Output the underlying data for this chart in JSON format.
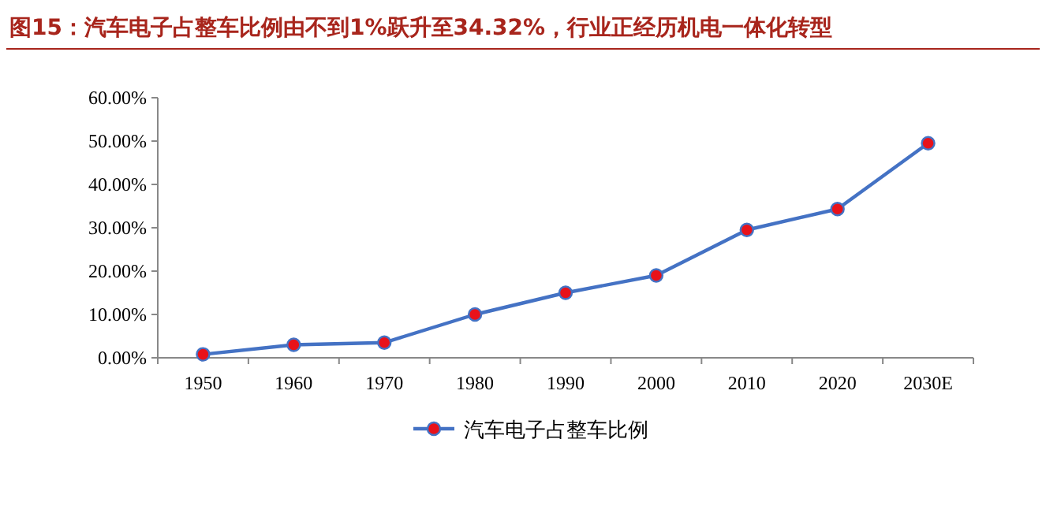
{
  "chart_data": {
    "type": "line",
    "title": "图15：汽车电子占整车比例由不到1%跃升至34.32%，行业正经历机电一体化转型",
    "categories": [
      "1950",
      "1960",
      "1970",
      "1980",
      "1990",
      "2000",
      "2010",
      "2020",
      "2030E"
    ],
    "series": [
      {
        "name": "汽车电子占整车比例",
        "color": "#4472c4",
        "values": [
          0.8,
          3.0,
          3.5,
          10.0,
          15.0,
          19.0,
          29.5,
          34.32,
          49.5
        ]
      }
    ],
    "ylim": [
      0,
      60
    ],
    "yticks": [
      {
        "value": 0,
        "label": "0.00%"
      },
      {
        "value": 10,
        "label": "10.00%"
      },
      {
        "value": 20,
        "label": "20.00%"
      },
      {
        "value": 30,
        "label": "30.00%"
      },
      {
        "value": 40,
        "label": "40.00%"
      },
      {
        "value": 50,
        "label": "50.00%"
      },
      {
        "value": 60,
        "label": "60.00%"
      }
    ],
    "marker": "circle",
    "grid": false,
    "legend": "bottom"
  }
}
